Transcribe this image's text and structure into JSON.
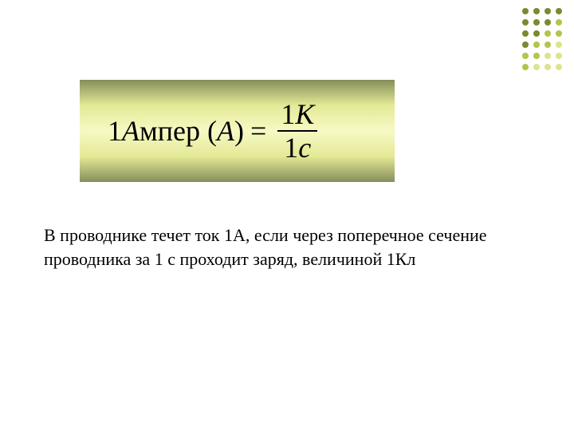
{
  "dots": {
    "colors": {
      "dark": "#7a8a2e",
      "mid": "#b5c44a",
      "light": "#dce48e"
    },
    "pattern": [
      [
        "dark",
        "dark",
        "dark",
        "dark"
      ],
      [
        "dark",
        "dark",
        "dark",
        "mid"
      ],
      [
        "dark",
        "dark",
        "mid",
        "mid"
      ],
      [
        "dark",
        "mid",
        "mid",
        "light"
      ],
      [
        "mid",
        "mid",
        "light",
        "light"
      ],
      [
        "mid",
        "light",
        "light",
        "light"
      ]
    ]
  },
  "formula": {
    "lhs_coef": "1",
    "lhs_italic": "А",
    "lhs_tail": "мпер",
    "lhs_paren_open": " (",
    "lhs_var": "А",
    "lhs_paren_close": ") ",
    "equals": "=",
    "frac_top_coef": "1",
    "frac_top_var": "К",
    "frac_bottom_coef": "1",
    "frac_bottom_var": "с",
    "box_gradient_outer": "#868e5a",
    "box_gradient_mid": "#e4e996",
    "box_gradient_center": "#f7f9c4",
    "text_color": "#000000",
    "fontsize": 36
  },
  "description": {
    "text": "В проводнике течет ток 1А, если через поперечное сечение проводника за 1 с проходит заряд, величиной 1Кл",
    "fontsize": 22,
    "color": "#000000"
  }
}
